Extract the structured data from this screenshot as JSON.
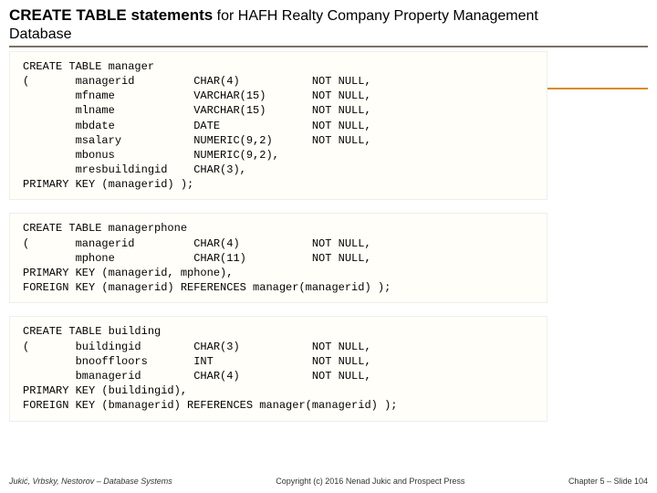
{
  "title_bold": "CREATE TABLE statements",
  "title_rest": " for HAFH Realty Company Property Management",
  "subtitle": "Database",
  "colors": {
    "underline": "#7c7066",
    "accent": "#d88b2a",
    "code_bg": "#fffef8"
  },
  "code1": "CREATE TABLE manager\n(       managerid         CHAR(4)           NOT NULL,\n        mfname            VARCHAR(15)       NOT NULL,\n        mlname            VARCHAR(15)       NOT NULL,\n        mbdate            DATE              NOT NULL,\n        msalary           NUMERIC(9,2)      NOT NULL,\n        mbonus            NUMERIC(9,2),\n        mresbuildingid    CHAR(3),\nPRIMARY KEY (managerid) );",
  "code2": "CREATE TABLE managerphone\n(       managerid         CHAR(4)           NOT NULL,\n        mphone            CHAR(11)          NOT NULL,\nPRIMARY KEY (managerid, mphone),\nFOREIGN KEY (managerid) REFERENCES manager(managerid) );",
  "code3": "CREATE TABLE building\n(       buildingid        CHAR(3)           NOT NULL,\n        bnooffloors       INT               NOT NULL,\n        bmanagerid        CHAR(4)           NOT NULL,\nPRIMARY KEY (buildingid),\nFOREIGN KEY (bmanagerid) REFERENCES manager(managerid) );",
  "footer": {
    "left": "Jukić, Vrbsky, Nestorov – Database Systems",
    "center": "Copyright (c) 2016 Nenad Jukic and Prospect Press",
    "right": "Chapter 5 – Slide 104"
  }
}
